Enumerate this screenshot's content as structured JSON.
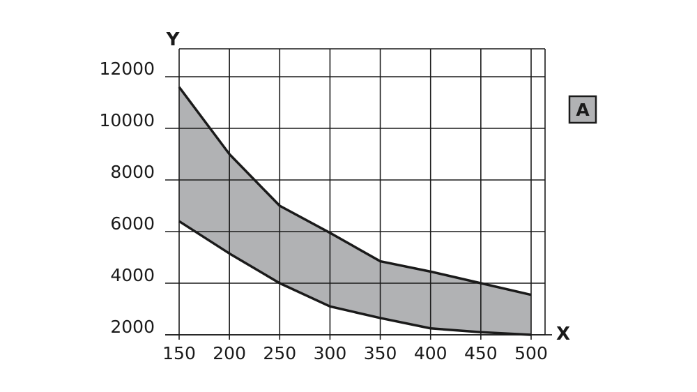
{
  "chart_data": {
    "type": "area",
    "xlabel": "X",
    "ylabel": "Y",
    "x": [
      150,
      200,
      250,
      300,
      350,
      400,
      450,
      500
    ],
    "x_ticks": [
      "150",
      "200",
      "250",
      "300",
      "350",
      "400",
      "450",
      "500"
    ],
    "y_ticks": [
      "2000",
      "4000",
      "6000",
      "8000",
      "10000",
      "12000"
    ],
    "xlim": [
      150,
      500
    ],
    "ylim": [
      2000,
      13000
    ],
    "grid": true,
    "series": [
      {
        "role": "upper",
        "values": [
          11600,
          9000,
          7000,
          5950,
          4850,
          4450,
          4000,
          3550
        ]
      },
      {
        "role": "lower",
        "values": [
          6400,
          5150,
          4000,
          3100,
          2650,
          2250,
          2100,
          2000
        ]
      }
    ],
    "band_color": "#b1b2b4",
    "line_color": "#1a1a1a",
    "legend": {
      "label": "A",
      "position": "right"
    }
  }
}
